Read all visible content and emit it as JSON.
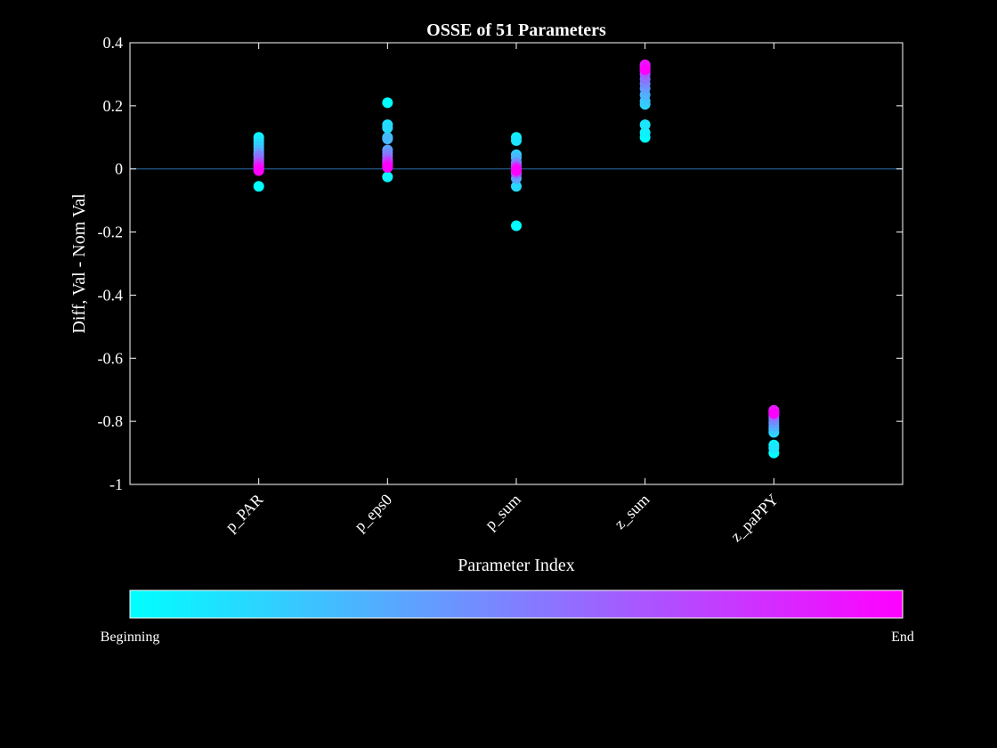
{
  "chart_data": {
    "type": "scatter",
    "title": "OSSE of 51 Parameters",
    "xlabel": "Parameter Index",
    "ylabel": "Diff, Val - Nom Val",
    "ylim": [
      -1,
      0.4
    ],
    "yticks": [
      0.4,
      0.2,
      0,
      -0.2,
      -0.4,
      -0.6,
      -0.8,
      -1
    ],
    "ytick_labels": [
      "0.4",
      "0.2",
      "0",
      "-0.2",
      "-0.4",
      "-0.6",
      "-0.8",
      "-1"
    ],
    "categories": [
      "p_PAR",
      "p_eps0",
      "p_sum",
      "z_sum",
      "z_paPPY"
    ],
    "reference_line": 0,
    "grid": false,
    "colors": {
      "background": "#000000",
      "axes": "#ffffff",
      "reference_line": "#2c6fb0",
      "start": "#00ffff",
      "end": "#ff00ff"
    },
    "colorbar": {
      "start_label": "Beginning",
      "end_label": "End"
    },
    "series": [
      {
        "category": "p_PAR",
        "values": [
          -0.055,
          0.1,
          0.09,
          0.08,
          0.07,
          0.06,
          0.05,
          0.045,
          0.04,
          0.03,
          0.02,
          0.015,
          0.01,
          0.005,
          0.0,
          -0.005
        ],
        "progress": [
          0.0,
          0.05,
          0.1,
          0.15,
          0.2,
          0.28,
          0.35,
          0.42,
          0.5,
          0.58,
          0.66,
          0.74,
          0.82,
          0.9,
          0.95,
          1.0
        ]
      },
      {
        "category": "p_eps0",
        "values": [
          0.21,
          -0.025,
          0.14,
          0.13,
          0.1,
          0.095,
          0.06,
          0.05,
          0.04,
          0.03,
          0.025,
          0.02,
          0.015,
          0.01,
          0.005
        ],
        "progress": [
          0.0,
          0.05,
          0.1,
          0.15,
          0.2,
          0.28,
          0.36,
          0.44,
          0.52,
          0.6,
          0.68,
          0.76,
          0.84,
          0.92,
          1.0
        ]
      },
      {
        "category": "p_sum",
        "values": [
          -0.18,
          0.1,
          0.09,
          -0.055,
          0.045,
          0.035,
          -0.03,
          0.02,
          -0.015,
          0.01,
          -0.01,
          0.005,
          0.0,
          -0.005
        ],
        "progress": [
          0.0,
          0.05,
          0.1,
          0.15,
          0.2,
          0.28,
          0.36,
          0.44,
          0.52,
          0.6,
          0.7,
          0.8,
          0.9,
          1.0
        ]
      },
      {
        "category": "z_sum",
        "values": [
          0.1,
          0.115,
          0.14,
          0.205,
          0.215,
          0.235,
          0.255,
          0.27,
          0.285,
          0.3,
          0.31,
          0.32,
          0.325,
          0.33,
          0.315
        ],
        "progress": [
          0.0,
          0.05,
          0.1,
          0.16,
          0.22,
          0.3,
          0.38,
          0.46,
          0.54,
          0.62,
          0.7,
          0.78,
          0.85,
          0.92,
          1.0
        ]
      },
      {
        "category": "z_paPPY",
        "values": [
          -0.9,
          -0.875,
          -0.885,
          -0.835,
          -0.825,
          -0.815,
          -0.805,
          -0.795,
          -0.785,
          -0.778,
          -0.772,
          -0.768,
          -0.765,
          -0.775
        ],
        "progress": [
          0.0,
          0.05,
          0.1,
          0.16,
          0.22,
          0.3,
          0.38,
          0.46,
          0.54,
          0.62,
          0.7,
          0.8,
          0.9,
          1.0
        ]
      }
    ]
  }
}
